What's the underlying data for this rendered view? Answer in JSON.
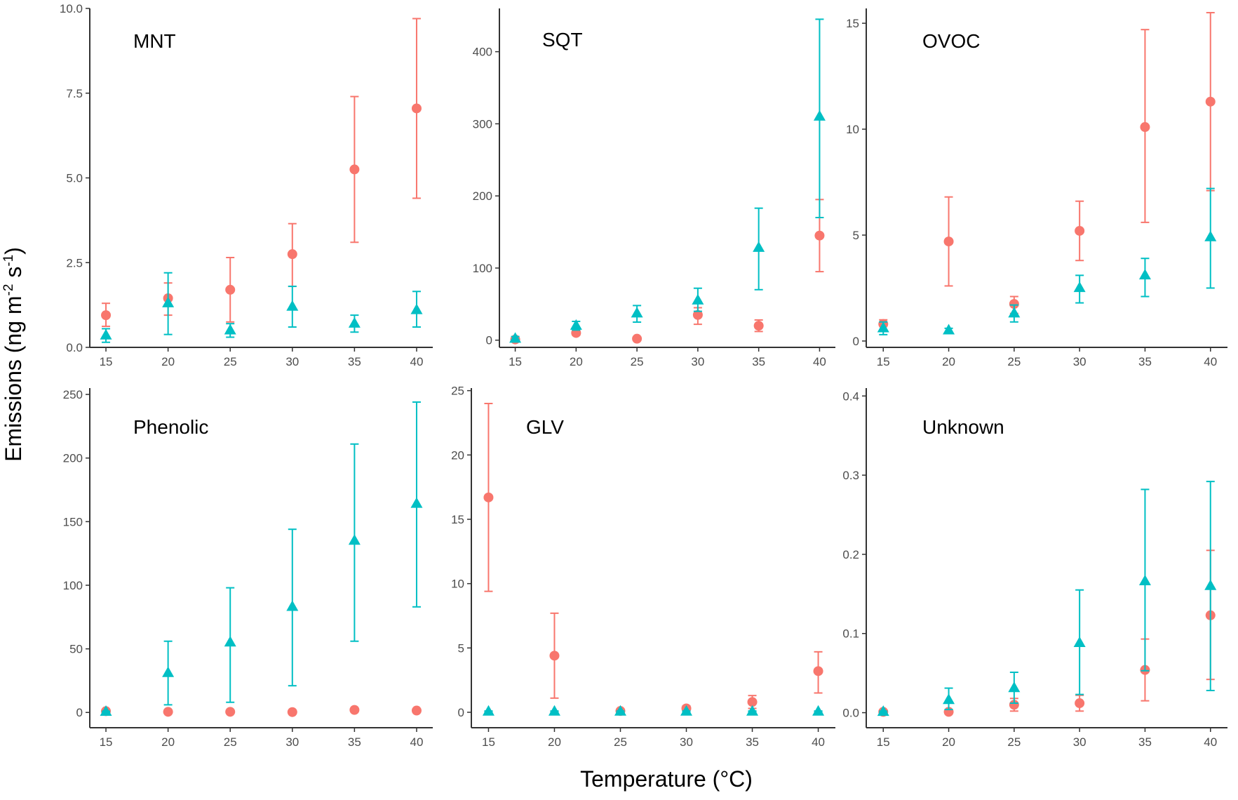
{
  "figure": {
    "xlabel": "Temperature (°C)",
    "ylabel_main": "Emissions  (ng m",
    "ylabel_sup1": "-2",
    "ylabel_mid": " s",
    "ylabel_sup2": "-1",
    "ylabel_end": ")",
    "colors": {
      "red_series": "#F8766D",
      "teal_series": "#00BFC4"
    }
  },
  "chart_data": [
    {
      "type": "scatter",
      "title": "MNT",
      "x": [
        15,
        20,
        25,
        30,
        35,
        40
      ],
      "ylim": [
        0,
        10
      ],
      "yticks": [
        "0.0",
        "2.5",
        "5.0",
        "7.5",
        "10.0"
      ],
      "yticks_values": [
        0,
        2.5,
        5,
        7.5,
        10
      ],
      "series": [
        {
          "marker": "circle",
          "color": "#F8766D",
          "values": [
            0.95,
            1.45,
            1.7,
            2.75,
            5.25,
            7.05
          ],
          "err_low": [
            0.62,
            0.95,
            0.75,
            1.8,
            3.1,
            4.4
          ],
          "err_high": [
            1.3,
            1.9,
            2.65,
            3.65,
            7.4,
            9.7
          ]
        },
        {
          "marker": "triangle",
          "color": "#00BFC4",
          "values": [
            0.35,
            1.3,
            0.5,
            1.2,
            0.7,
            1.1
          ],
          "err_low": [
            0.15,
            0.38,
            0.3,
            0.6,
            0.45,
            0.6
          ],
          "err_high": [
            0.55,
            2.2,
            0.7,
            1.8,
            0.95,
            1.65
          ]
        }
      ]
    },
    {
      "type": "scatter",
      "title": "SQT",
      "x": [
        15,
        20,
        25,
        30,
        35,
        40
      ],
      "ylim": [
        -10,
        460
      ],
      "yticks": [
        "0",
        "100",
        "200",
        "300",
        "400"
      ],
      "yticks_values": [
        0,
        100,
        200,
        300,
        400
      ],
      "series": [
        {
          "marker": "circle",
          "color": "#F8766D",
          "values": [
            1,
            10,
            2,
            35,
            20,
            145
          ],
          "err_low": [
            0,
            7,
            0,
            22,
            12,
            95
          ],
          "err_high": [
            3,
            13,
            4,
            45,
            28,
            195
          ]
        },
        {
          "marker": "triangle",
          "color": "#00BFC4",
          "values": [
            2,
            20,
            37,
            55,
            128,
            310
          ],
          "err_low": [
            0,
            14,
            25,
            40,
            70,
            170
          ],
          "err_high": [
            5,
            26,
            48,
            72,
            183,
            445
          ]
        }
      ]
    },
    {
      "type": "scatter",
      "title": "OVOC",
      "x": [
        15,
        20,
        25,
        30,
        35,
        40
      ],
      "ylim": [
        -0.3,
        15.7
      ],
      "yticks": [
        "0",
        "5",
        "10",
        "15"
      ],
      "yticks_values": [
        0,
        5,
        10,
        15
      ],
      "series": [
        {
          "marker": "circle",
          "color": "#F8766D",
          "values": [
            0.8,
            4.7,
            1.75,
            5.2,
            10.1,
            11.3
          ],
          "err_low": [
            0.5,
            2.6,
            1.3,
            3.8,
            5.6,
            7.1
          ],
          "err_high": [
            1.0,
            6.8,
            2.1,
            6.6,
            14.7,
            15.5
          ]
        },
        {
          "marker": "triangle",
          "color": "#00BFC4",
          "values": [
            0.6,
            0.5,
            1.3,
            2.5,
            3.1,
            4.9
          ],
          "err_low": [
            0.3,
            0.4,
            0.9,
            1.8,
            2.1,
            2.5
          ],
          "err_high": [
            0.9,
            0.6,
            1.7,
            3.1,
            3.9,
            7.2
          ]
        }
      ]
    },
    {
      "type": "scatter",
      "title": "Phenolic",
      "x": [
        15,
        20,
        25,
        30,
        35,
        40
      ],
      "ylim": [
        -12,
        255
      ],
      "yticks": [
        "0",
        "50",
        "100",
        "150",
        "200",
        "250"
      ],
      "yticks_values": [
        0,
        50,
        100,
        150,
        200,
        250
      ],
      "series": [
        {
          "marker": "circle",
          "color": "#F8766D",
          "values": [
            1,
            0.5,
            0.5,
            0.3,
            2,
            1.5
          ],
          "err_low": [
            0,
            0,
            0,
            0,
            1,
            0.5
          ],
          "err_high": [
            2,
            1,
            1,
            0.6,
            3,
            2.5
          ]
        },
        {
          "marker": "triangle",
          "color": "#00BFC4",
          "values": [
            0.5,
            31,
            55,
            83,
            135,
            164
          ],
          "err_low": [
            0,
            6,
            8,
            21,
            56,
            83
          ],
          "err_high": [
            1,
            56,
            98,
            144,
            211,
            244
          ]
        }
      ]
    },
    {
      "type": "scatter",
      "title": "GLV",
      "x": [
        15,
        20,
        25,
        30,
        35,
        40
      ],
      "ylim": [
        -1.2,
        25.2
      ],
      "yticks": [
        "0",
        "5",
        "10",
        "15",
        "20",
        "25"
      ],
      "yticks_values": [
        0,
        5,
        10,
        15,
        20,
        25
      ],
      "series": [
        {
          "marker": "circle",
          "color": "#F8766D",
          "values": [
            16.7,
            4.4,
            0.1,
            0.3,
            0.8,
            3.2
          ],
          "err_low": [
            9.4,
            1.1,
            0,
            0.1,
            0.3,
            1.5
          ],
          "err_high": [
            24.0,
            7.7,
            0.2,
            0.5,
            1.3,
            4.7
          ]
        },
        {
          "marker": "triangle",
          "color": "#00BFC4",
          "values": [
            0.05,
            0.05,
            0.05,
            0.05,
            0.05,
            0.05
          ],
          "err_low": [
            0,
            0,
            0,
            0,
            0,
            0
          ],
          "err_high": [
            0.1,
            0.1,
            0.1,
            0.1,
            0.1,
            0.1
          ]
        }
      ]
    },
    {
      "type": "scatter",
      "title": "Unknown",
      "x": [
        15,
        20,
        25,
        30,
        35,
        40
      ],
      "ylim": [
        -0.019,
        0.41
      ],
      "yticks": [
        "0.0",
        "0.1",
        "0.2",
        "0.3",
        "0.4"
      ],
      "yticks_values": [
        0,
        0.1,
        0.2,
        0.3,
        0.4
      ],
      "series": [
        {
          "marker": "circle",
          "color": "#F8766D",
          "values": [
            0.001,
            0.001,
            0.01,
            0.012,
            0.054,
            0.123
          ],
          "err_low": [
            0,
            0,
            0.002,
            0.002,
            0.015,
            0.042
          ],
          "err_high": [
            0.002,
            0.002,
            0.018,
            0.022,
            0.093,
            0.205
          ]
        },
        {
          "marker": "triangle",
          "color": "#00BFC4",
          "values": [
            0.001,
            0.016,
            0.031,
            0.088,
            0.166,
            0.16
          ],
          "err_low": [
            0,
            0.004,
            0.012,
            0.023,
            0.053,
            0.028
          ],
          "err_high": [
            0.002,
            0.031,
            0.051,
            0.155,
            0.282,
            0.292
          ]
        }
      ]
    }
  ]
}
